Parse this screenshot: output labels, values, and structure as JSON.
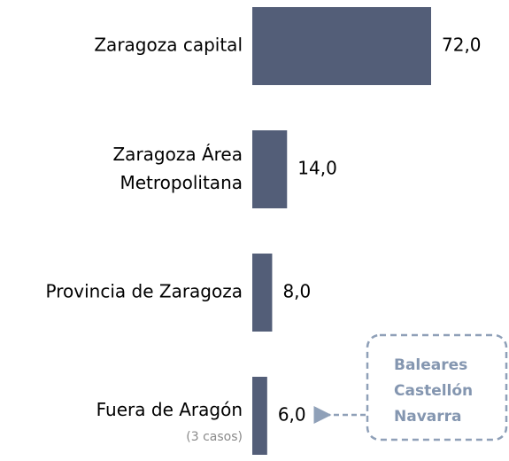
{
  "chart_data": {
    "type": "bar",
    "orientation": "horizontal",
    "categories": [
      "Zaragoza capital",
      "Zaragoza Área\nMetropolitana",
      "Provincia de Zaragoza",
      "Fuera de Aragón"
    ],
    "values": [
      72,
      14,
      8,
      6
    ],
    "value_labels": [
      "72,0",
      "14,0",
      "8,0",
      "6,0"
    ],
    "color": "#535e78",
    "annotations": {
      "note": "(3 casos)",
      "callout": [
        "Baleares",
        "Castellón",
        "Navarra"
      ]
    }
  }
}
